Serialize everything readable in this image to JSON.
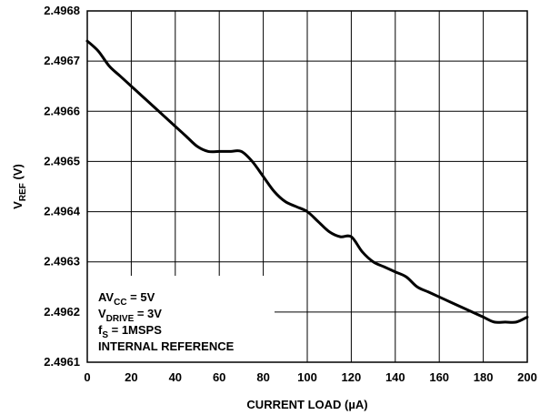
{
  "chart_data": {
    "type": "line",
    "xlabel": "CURRENT LOAD (µA)",
    "ylabel": {
      "main": "V",
      "sub": "REF",
      "tail": " (V)"
    },
    "xlim": [
      0,
      200
    ],
    "ylim": [
      2.4961,
      2.4968
    ],
    "x_ticks": [
      0,
      20,
      40,
      60,
      80,
      100,
      120,
      140,
      160,
      180,
      200
    ],
    "y_ticks": [
      "2.4961",
      "2.4962",
      "2.4963",
      "2.4964",
      "2.4965",
      "2.4966",
      "2.4967",
      "2.4968"
    ],
    "grid": true,
    "series": [
      {
        "x": [
          0,
          5,
          10,
          15,
          20,
          25,
          30,
          35,
          40,
          45,
          50,
          55,
          60,
          65,
          70,
          75,
          80,
          85,
          90,
          95,
          100,
          105,
          110,
          115,
          120,
          125,
          130,
          135,
          140,
          145,
          150,
          155,
          160,
          165,
          170,
          175,
          180,
          185,
          190,
          195,
          200
        ],
        "y": [
          2.49674,
          2.49672,
          2.49669,
          2.49667,
          2.49665,
          2.49663,
          2.49661,
          2.49659,
          2.49657,
          2.49655,
          2.49653,
          2.49652,
          2.49652,
          2.49652,
          2.49652,
          2.4965,
          2.49647,
          2.49644,
          2.49642,
          2.49641,
          2.4964,
          2.49638,
          2.49636,
          2.49635,
          2.49635,
          2.49632,
          2.4963,
          2.49629,
          2.49628,
          2.49627,
          2.49625,
          2.49624,
          2.49623,
          2.49622,
          2.49621,
          2.4962,
          2.49619,
          2.49618,
          2.49618,
          2.49618,
          2.49619
        ]
      }
    ],
    "annotation": {
      "line1": {
        "main": "AV",
        "sub": "CC",
        "tail": " = 5V"
      },
      "line2": {
        "main": "V",
        "sub": "DRIVE",
        "tail": " = 3V"
      },
      "line3": {
        "main": "f",
        "sub": "S",
        "tail": " = 1MSPS"
      },
      "line4": "INTERNAL REFERENCE"
    }
  }
}
